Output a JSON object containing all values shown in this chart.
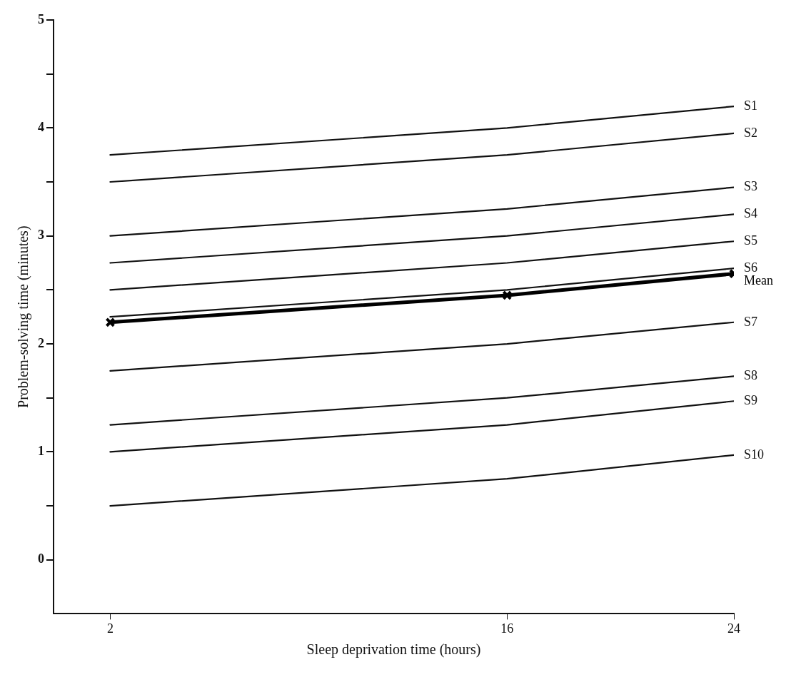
{
  "chart_data": {
    "type": "line",
    "xlabel": "Sleep deprivation time (hours)",
    "ylabel": "Problem-solving time (minutes)",
    "x": [
      2,
      16,
      24
    ],
    "xlim": [
      0,
      24
    ],
    "xticks": [
      2,
      16,
      24
    ],
    "ylim": [
      -0.5,
      5
    ],
    "yticks": [
      0,
      {
        "value": 0.5,
        "label": null
      },
      1,
      {
        "value": 1.5,
        "label": null
      },
      2,
      {
        "value": 2.5,
        "label": null
      },
      3,
      {
        "value": 3.5,
        "label": null
      },
      4,
      {
        "value": 4.5,
        "label": null
      },
      5
    ],
    "grid": false,
    "legend": false,
    "marker": "none",
    "line_style": "solid",
    "series": [
      {
        "name": "S1",
        "color": "#111111",
        "values": [
          3.75,
          4.0,
          4.2
        ]
      },
      {
        "name": "S2",
        "color": "#111111",
        "values": [
          3.5,
          3.75,
          3.95
        ]
      },
      {
        "name": "S3",
        "color": "#111111",
        "values": [
          3.0,
          3.25,
          3.45
        ]
      },
      {
        "name": "S4",
        "color": "#111111",
        "values": [
          2.75,
          3.0,
          3.2
        ]
      },
      {
        "name": "S5",
        "color": "#111111",
        "values": [
          2.5,
          2.75,
          2.95
        ]
      },
      {
        "name": "S6",
        "color": "#111111",
        "values": [
          2.25,
          2.5,
          2.7
        ]
      },
      {
        "name": "Mean",
        "color": "#000000",
        "marker": "cross",
        "values": [
          2.2,
          2.45,
          2.65
        ]
      },
      {
        "name": "S7",
        "color": "#111111",
        "values": [
          1.75,
          2.0,
          2.2
        ]
      },
      {
        "name": "S8",
        "color": "#111111",
        "values": [
          1.25,
          1.5,
          1.7
        ]
      },
      {
        "name": "S9",
        "color": "#111111",
        "values": [
          1.0,
          1.25,
          1.47
        ]
      },
      {
        "name": "S10",
        "color": "#111111",
        "values": [
          0.5,
          0.75,
          0.97
        ]
      }
    ]
  }
}
